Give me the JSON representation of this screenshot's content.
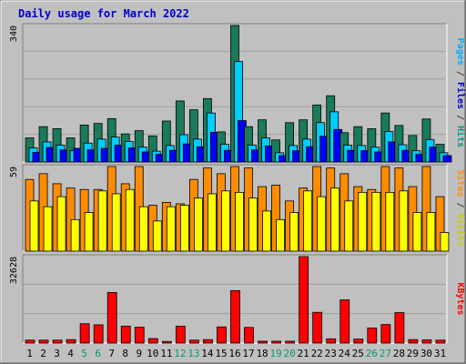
{
  "chart_data": {
    "type": "bar",
    "title": "Daily usage for March 2022",
    "categories": [
      "1",
      "2",
      "3",
      "4",
      "5",
      "6",
      "7",
      "8",
      "9",
      "10",
      "11",
      "12",
      "13",
      "14",
      "15",
      "16",
      "17",
      "18",
      "19",
      "20",
      "21",
      "22",
      "23",
      "24",
      "25",
      "26",
      "27",
      "28",
      "29",
      "30",
      "31"
    ],
    "weekend_days": [
      "5",
      "6",
      "12",
      "13",
      "19",
      "20",
      "26",
      "27"
    ],
    "panels": [
      {
        "name": "top",
        "axis_label": "340",
        "ylim": [
          0,
          340
        ],
        "legend": [
          "Pages",
          "Files",
          "Hits"
        ],
        "series": [
          {
            "name": "Hits",
            "color": "#1a7a5a",
            "values": [
              60,
              88,
              83,
              60,
              92,
              96,
              108,
              70,
              78,
              65,
              102,
              152,
              130,
              158,
              75,
              340,
              88,
              105,
              55,
              98,
              105,
              142,
              165,
              73,
              88,
              83,
              122,
              91,
              66,
              107,
              44
            ]
          },
          {
            "name": "Files",
            "color": "#00ccff",
            "values": [
              35,
              50,
              42,
              28,
              47,
              57,
              62,
              51,
              37,
              27,
              41,
              68,
              57,
              122,
              44,
              250,
              42,
              60,
              23,
              41,
              57,
              98,
              125,
              42,
              41,
              37,
              76,
              43,
              28,
              56,
              23
            ]
          },
          {
            "name": "Pages",
            "color": "#0000ff",
            "values": [
              24,
              36,
              30,
              34,
              30,
              34,
              42,
              35,
              25,
              19,
              29,
              45,
              38,
              74,
              29,
              103,
              30,
              40,
              16,
              28,
              38,
              64,
              81,
              29,
              28,
              25,
              50,
              29,
              19,
              37,
              16
            ]
          }
        ]
      },
      {
        "name": "middle",
        "axis_label": "59",
        "ylim": [
          0,
          59
        ],
        "legend": [
          "Sites",
          "Visits"
        ],
        "series": [
          {
            "name": "Visits",
            "color": "#ff8c00",
            "values": [
              50,
              54,
              47,
              44,
              43,
              43,
              59,
              47,
              59,
              32,
              34,
              33,
              50,
              58,
              54,
              59,
              58,
              45,
              46,
              35,
              44,
              59,
              58,
              54,
              45,
              43,
              59,
              58,
              45,
              59,
              38
            ]
          },
          {
            "name": "Sites",
            "color": "#ffff00",
            "values": [
              35,
              31,
              38,
              22,
              27,
              42,
              40,
              43,
              31,
              21,
              31,
              32,
              37,
              40,
              42,
              41,
              37,
              28,
              22,
              27,
              42,
              38,
              44,
              35,
              41,
              41,
              41,
              42,
              27,
              27,
              13
            ]
          }
        ]
      },
      {
        "name": "bottom",
        "axis_label": "32628",
        "ylim": [
          0,
          32628
        ],
        "legend": [
          "KBytes"
        ],
        "series": [
          {
            "name": "KBytes",
            "color": "#ff0000",
            "values": [
              1100,
              1100,
              1100,
              1300,
              7300,
              6900,
              19100,
              6400,
              6000,
              1700,
              600,
              6400,
              1100,
              1300,
              6100,
              19800,
              5900,
              700,
              700,
              700,
              32628,
              11600,
              1600,
              16300,
              1500,
              5700,
              7000,
              11500,
              1300,
              1200,
              1100
            ]
          }
        ]
      }
    ]
  }
}
